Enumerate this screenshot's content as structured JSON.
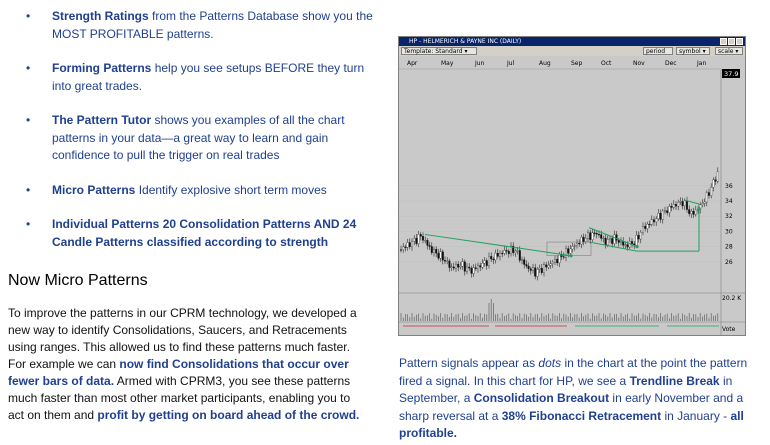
{
  "bullets": [
    {
      "bold": "Strength Ratings",
      "rest": " from the Patterns Database show you the MOST PROFITABLE patterns."
    },
    {
      "bold": "Forming Patterns",
      "rest": " help you see setups BEFORE they turn into great trades."
    },
    {
      "bold": "The Pattern Tutor",
      "rest": " shows you examples of all the chart patterns in your data—a great way to learn and gain confidence to pull the trigger on real trades"
    },
    {
      "bold": "Micro Patterns",
      "rest": " Identify explosive short term moves"
    },
    {
      "bold": "Individual Patterns 20 Consolidation Patterns AND 24 Candle Patterns classified according to strength",
      "rest": ""
    }
  ],
  "section_title": "Now Micro Patterns",
  "paragraph": {
    "p1": "To improve the patterns in our CPRM technology, we developed a new way to identify Consolidations, Saucers, and Retracements using ranges. This allowed us to find these patterns much faster. For example we can ",
    "b1": "now find Consolidations that occur over fewer bars of data.",
    "p2": " Armed with CPRM3, you see these patterns much faster than most other market participants, enabling you to act on them and ",
    "b2": "profit by getting on board ahead of the crowd."
  },
  "chart_window": {
    "title": "HP - HELMERICH & PAYNE INC (DAILY)",
    "template_label": "Template: Standard",
    "period_label": "period",
    "symbol_label": "symbol",
    "scale_label": "scale",
    "months": [
      "Apr",
      "May",
      "Jun",
      "Jul",
      "Aug",
      "Sep",
      "Oct",
      "Nov",
      "Dec",
      "Jan"
    ],
    "price_ticks": [
      "36",
      "34",
      "32",
      "30",
      "28",
      "26"
    ],
    "last_price": "37.9",
    "volume_label": "20.2 K",
    "vote_label": "Vote",
    "colors": {
      "background": "#c9c9c9",
      "pattern": "#20a060",
      "up_candle": "#ffffff",
      "down_candle": "#101010"
    }
  },
  "caption": {
    "p1": "Pattern signals appear as ",
    "i1": "dots",
    "p2": " in the chart at the point the pattern fired a signal. In this chart for HP, we see a ",
    "b1": "Trendline Break",
    "p3": " in September, a ",
    "b2": "Consolidation Breakout",
    "p4": " in early November and a sharp reversal at a ",
    "b3": "38% Fibonacci Retracement",
    "p5": " in January - ",
    "b4": "all profitable."
  }
}
